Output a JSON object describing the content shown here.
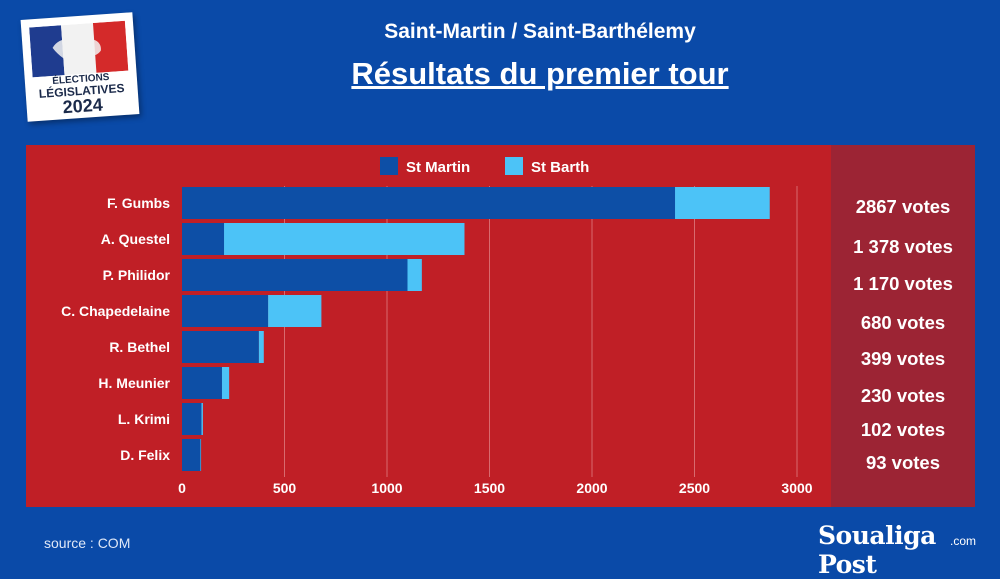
{
  "logo": {
    "line1": "ÉLECTIONS",
    "line2": "LÉGISLATIVES",
    "line3": "2024"
  },
  "header": {
    "subtitle": "Saint-Martin / Saint-Barthélemy",
    "title": "Résultats du premier tour"
  },
  "colors": {
    "st_martin": "#0d4fa6",
    "st_barth": "#4cc3f7",
    "panel": "#c01f26",
    "votes_panel": "#9c2434",
    "background": "#0a4aa8"
  },
  "chart_data": {
    "type": "bar",
    "orientation": "horizontal",
    "stacked": true,
    "categories": [
      "F. Gumbs",
      "A. Questel",
      "P. Philidor",
      "C. Chapedelaine",
      "R. Bethel",
      "H. Meunier",
      "L. Krimi",
      "D. Felix"
    ],
    "series": [
      {
        "name": "St Martin",
        "values": [
          2405,
          205,
          1100,
          420,
          375,
          195,
          95,
          90
        ]
      },
      {
        "name": "St Barth",
        "values": [
          462,
          1173,
          70,
          260,
          24,
          35,
          7,
          3
        ]
      }
    ],
    "xlim": [
      0,
      3000
    ],
    "xticks": [
      "0",
      "500",
      "1000",
      "1500",
      "2000",
      "2500",
      "3000"
    ],
    "grid": "vertical",
    "legend": "top-center",
    "totals": [
      "2867 votes",
      "1 378 votes",
      "1 170 votes",
      "680 votes",
      "399 votes",
      "230 votes",
      "102 votes",
      "93 votes"
    ]
  },
  "footer": {
    "source": "source : COM",
    "brand": "Soualiga Post",
    "brand_suffix": ".com"
  }
}
